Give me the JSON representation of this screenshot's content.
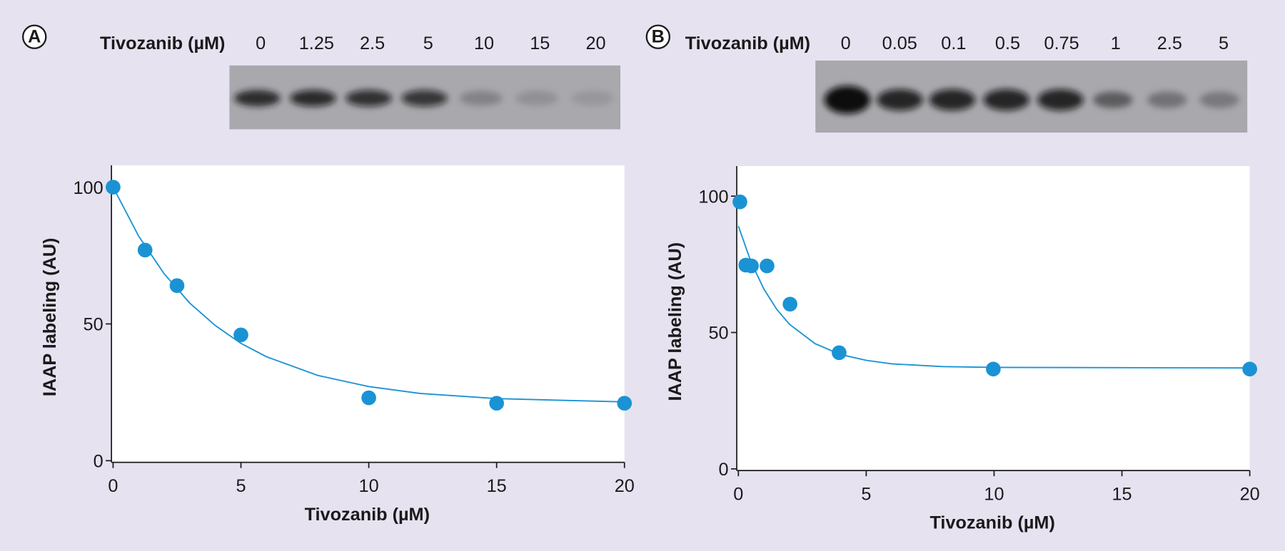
{
  "chart_data": [
    {
      "type": "scatter",
      "panel_label": "A",
      "gel_label": "Tivozanib (µM)",
      "gel_lanes": [
        "0",
        "1.25",
        "2.5",
        "5",
        "10",
        "15",
        "20"
      ],
      "xlabel": "Tivozanib (µM)",
      "ylabel": "IAAP labeling (AU)",
      "xlim": [
        0,
        20
      ],
      "ylim": [
        0,
        108
      ],
      "xticks": [
        0,
        5,
        10,
        15,
        20
      ],
      "yticks": [
        0,
        50,
        100
      ],
      "series": [
        {
          "type": "scatter",
          "color": "#1a93d4",
          "x": [
            0,
            1.25,
            2.5,
            5,
            10,
            15,
            20
          ],
          "values": [
            100,
            77,
            64,
            46,
            23,
            21,
            21
          ]
        },
        {
          "type": "line",
          "color": "#1a93d4",
          "x": [
            0,
            1,
            2,
            3,
            4,
            5,
            6,
            8,
            10,
            12,
            15,
            20
          ],
          "values": [
            100,
            82.1,
            68.3,
            57.6,
            49.4,
            42.9,
            38,
            31.2,
            27.1,
            24.6,
            22.7,
            21.5
          ]
        }
      ]
    },
    {
      "type": "scatter",
      "panel_label": "B",
      "gel_label": "Tivozanib (µM)",
      "gel_lanes": [
        "0",
        "0.05",
        "0.1",
        "0.5",
        "0.75",
        "1",
        "2.5",
        "5"
      ],
      "xlabel": "Tivozanib (µM)",
      "ylabel": "IAAP labeling (AU)",
      "xlim": [
        0,
        20
      ],
      "ylim": [
        0,
        111
      ],
      "xticks": [
        0,
        5,
        10,
        15,
        20
      ],
      "yticks": [
        0,
        50,
        100
      ],
      "series": [
        {
          "type": "scatter",
          "color": "#1a93d4",
          "x": [
            0.06,
            0.29,
            0.51,
            1.12,
            2.02,
            3.94,
            9.97,
            20
          ],
          "values": [
            97.9,
            74.7,
            74.4,
            74.4,
            60.4,
            42.6,
            36.6,
            36.6
          ]
        },
        {
          "type": "line",
          "color": "#1a93d4",
          "x": [
            0,
            0.5,
            1,
            1.5,
            2,
            3,
            4,
            5,
            6,
            8,
            10,
            20
          ],
          "values": [
            89,
            75.7,
            65.9,
            58.5,
            53,
            45.9,
            41.9,
            39.8,
            38.5,
            37.5,
            37.2,
            37
          ]
        }
      ]
    }
  ]
}
